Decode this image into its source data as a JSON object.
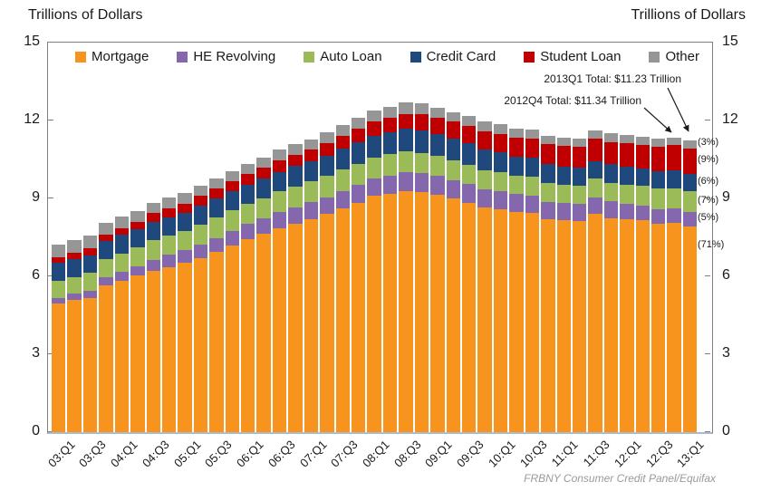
{
  "page": {
    "left_axis_title": "Trillions of Dollars",
    "right_axis_title": "Trillions of Dollars",
    "footer": "FRBNY Consumer Credit Panel/Equifax"
  },
  "annotations": {
    "total_2013q1": "2013Q1 Total: $11.23 Trillion",
    "total_2012q4": "2012Q4 Total: $11.34 Trillion"
  },
  "chart_data": {
    "type": "bar",
    "stacked": true,
    "legend_position": "top-inside",
    "grid": false,
    "ylim": [
      0,
      15
    ],
    "yticks": [
      0,
      3,
      6,
      9,
      12,
      15
    ],
    "tick_label_every": 2,
    "categories": [
      "03:Q1",
      "03:Q2",
      "03:Q3",
      "03:Q4",
      "04:Q1",
      "04:Q2",
      "04:Q3",
      "04:Q4",
      "05:Q1",
      "05:Q2",
      "05:Q3",
      "05:Q4",
      "06:Q1",
      "06:Q2",
      "06:Q3",
      "06:Q4",
      "07:Q1",
      "07:Q2",
      "07:Q3",
      "07:Q4",
      "08:Q1",
      "08:Q2",
      "08:Q3",
      "08:Q4",
      "09:Q1",
      "09:Q2",
      "09:Q3",
      "09:Q4",
      "10:Q1",
      "10:Q2",
      "10:Q3",
      "10:Q4",
      "11:Q1",
      "11:Q2",
      "11:Q3",
      "11:Q4",
      "12:Q1",
      "12:Q2",
      "12:Q3",
      "12:Q4",
      "13:Q1"
    ],
    "series": [
      {
        "name": "Mortgage",
        "color": "#F7941E",
        "share_label": "(71%)",
        "values": [
          4.94,
          5.08,
          5.18,
          5.66,
          5.84,
          6.02,
          6.21,
          6.36,
          6.51,
          6.7,
          6.94,
          7.2,
          7.43,
          7.64,
          7.86,
          8.03,
          8.21,
          8.4,
          8.62,
          8.83,
          9.09,
          9.19,
          9.29,
          9.26,
          9.15,
          9.0,
          8.84,
          8.64,
          8.58,
          8.47,
          8.44,
          8.2,
          8.16,
          8.13,
          8.4,
          8.25,
          8.19,
          8.15,
          8.03,
          8.05,
          7.93
        ]
      },
      {
        "name": "HE Revolving",
        "color": "#8467AD",
        "share_label": "(5%)",
        "values": [
          0.24,
          0.26,
          0.27,
          0.3,
          0.33,
          0.37,
          0.43,
          0.47,
          0.5,
          0.53,
          0.54,
          0.56,
          0.58,
          0.59,
          0.61,
          0.62,
          0.64,
          0.65,
          0.67,
          0.68,
          0.69,
          0.7,
          0.71,
          0.71,
          0.71,
          0.71,
          0.72,
          0.71,
          0.71,
          0.69,
          0.68,
          0.67,
          0.66,
          0.65,
          0.64,
          0.63,
          0.61,
          0.59,
          0.57,
          0.56,
          0.55
        ]
      },
      {
        "name": "Auto Loan",
        "color": "#9BBB59",
        "share_label": "(7%)",
        "values": [
          0.64,
          0.62,
          0.68,
          0.7,
          0.72,
          0.74,
          0.75,
          0.73,
          0.73,
          0.77,
          0.79,
          0.79,
          0.79,
          0.79,
          0.81,
          0.82,
          0.8,
          0.82,
          0.82,
          0.82,
          0.8,
          0.81,
          0.81,
          0.79,
          0.77,
          0.76,
          0.75,
          0.74,
          0.72,
          0.72,
          0.71,
          0.71,
          0.71,
          0.71,
          0.72,
          0.73,
          0.74,
          0.75,
          0.77,
          0.78,
          0.79
        ]
      },
      {
        "name": "Credit Card",
        "color": "#1F497D",
        "share_label": "(6%)",
        "values": [
          0.69,
          0.69,
          0.69,
          0.7,
          0.7,
          0.7,
          0.71,
          0.72,
          0.71,
          0.72,
          0.73,
          0.73,
          0.72,
          0.74,
          0.75,
          0.77,
          0.77,
          0.79,
          0.81,
          0.84,
          0.83,
          0.85,
          0.87,
          0.87,
          0.84,
          0.83,
          0.81,
          0.81,
          0.77,
          0.74,
          0.73,
          0.73,
          0.7,
          0.69,
          0.69,
          0.7,
          0.68,
          0.67,
          0.67,
          0.68,
          0.66
        ]
      },
      {
        "name": "Student Loan",
        "color": "#C00000",
        "share_label": "(9%)",
        "values": [
          0.24,
          0.24,
          0.25,
          0.25,
          0.26,
          0.26,
          0.33,
          0.35,
          0.36,
          0.37,
          0.38,
          0.39,
          0.41,
          0.42,
          0.44,
          0.45,
          0.47,
          0.48,
          0.5,
          0.52,
          0.54,
          0.56,
          0.58,
          0.61,
          0.63,
          0.65,
          0.67,
          0.69,
          0.71,
          0.72,
          0.75,
          0.77,
          0.79,
          0.81,
          0.85,
          0.87,
          0.9,
          0.91,
          0.94,
          0.97,
          0.99
        ]
      },
      {
        "name": "Other",
        "color": "#969696",
        "share_label": "(3%)",
        "values": [
          0.48,
          0.49,
          0.49,
          0.45,
          0.45,
          0.42,
          0.41,
          0.42,
          0.39,
          0.4,
          0.4,
          0.39,
          0.4,
          0.39,
          0.41,
          0.39,
          0.39,
          0.4,
          0.41,
          0.42,
          0.42,
          0.43,
          0.43,
          0.41,
          0.39,
          0.38,
          0.38,
          0.37,
          0.36,
          0.36,
          0.35,
          0.34,
          0.33,
          0.32,
          0.32,
          0.32,
          0.32,
          0.31,
          0.31,
          0.3,
          0.32
        ]
      }
    ]
  }
}
